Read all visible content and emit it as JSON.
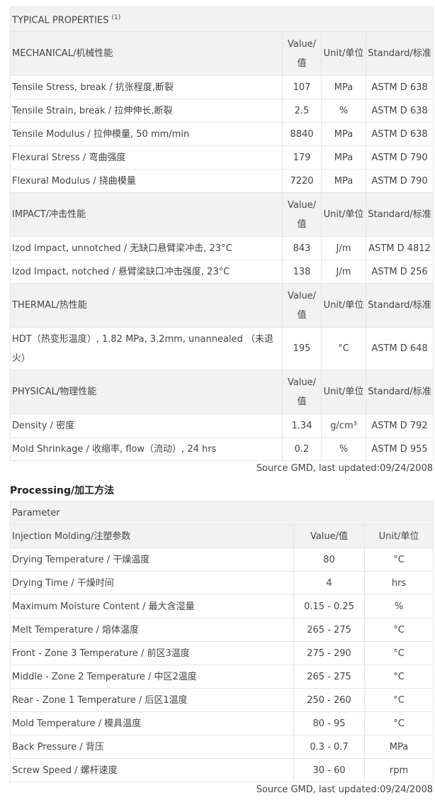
{
  "properties": {
    "title": "TYPICAL PROPERTIES",
    "title_sup": "(1)",
    "sections": [
      {
        "name": "MECHANICAL/机械性能",
        "value_hdr": "Value/值",
        "unit_hdr": "Unit/单位",
        "std_hdr": "Standard/标准",
        "rows": [
          {
            "name": "Tensile Stress, break / 抗张程度,断裂",
            "value": "107",
            "unit": "MPa",
            "std": "ASTM D 638"
          },
          {
            "name": "Tensile Strain, break / 拉伸伸长,断裂",
            "value": "2.5",
            "unit": "%",
            "std": "ASTM D 638"
          },
          {
            "name": "Tensile Modulus / 拉伸模量, 50 mm/min",
            "value": "8840",
            "unit": "MPa",
            "std": "ASTM D 638"
          },
          {
            "name": "Flexural Stress / 弯曲强度",
            "value": "179",
            "unit": "MPa",
            "std": "ASTM D 790"
          },
          {
            "name": "Flexural Modulus / 挠曲模量",
            "value": "7220",
            "unit": "MPa",
            "std": "ASTM D 790"
          }
        ]
      },
      {
        "name": "IMPACT/冲击性能",
        "value_hdr": "Value/值",
        "unit_hdr": "Unit/单位",
        "std_hdr": "Standard/标准",
        "rows": [
          {
            "name": "Izod Impact, unnotched / 无缺口悬臂梁冲击, 23°C",
            "value": "843",
            "unit": "J/m",
            "std": "ASTM D 4812"
          },
          {
            "name": "Izod Impact, notched / 悬臂梁缺口冲击强度, 23°C",
            "value": "138",
            "unit": "J/m",
            "std": "ASTM D 256"
          }
        ]
      },
      {
        "name": "THERMAL/热性能",
        "value_hdr": "Value/值",
        "unit_hdr": "Unit/单位",
        "std_hdr": "Standard/标准",
        "rows": [
          {
            "name": "HDT（热变形温度）, 1.82 MPa, 3.2mm, unannealed （未退火）",
            "value": "195",
            "unit": "°C",
            "std": "ASTM D 648",
            "tall": true
          }
        ]
      },
      {
        "name": "PHYSICAL/物理性能",
        "value_hdr": "Value/值",
        "unit_hdr": "Unit/单位",
        "std_hdr": "Standard/标准",
        "rows": [
          {
            "name": "Density / 密度",
            "value": "1.34",
            "unit": "g/cm³",
            "std": "ASTM D 792"
          },
          {
            "name": "Mold Shrinkage / 收缩率, flow（流动）, 24 hrs",
            "value": "0.2",
            "unit": "%",
            "std": "ASTM D 955"
          }
        ]
      }
    ],
    "source": "Source GMD, last updated:09/24/2008"
  },
  "processing": {
    "heading": "Processing/加工方法",
    "param_hdr": "Parameter",
    "section": "Injection Molding/注塑参数",
    "value_hdr": "Value/值",
    "unit_hdr": "Unit/单位",
    "rows": [
      {
        "name": "Drying Temperature / 干燥温度",
        "value": "80",
        "unit": "°C"
      },
      {
        "name": "Drying Time / 干燥时间",
        "value": "4",
        "unit": "hrs"
      },
      {
        "name": "Maximum Moisture Content / 最大含湿量",
        "value": "0.15 - 0.25",
        "unit": "%"
      },
      {
        "name": "Melt Temperature / 熔体温度",
        "value": "265 - 275",
        "unit": "°C"
      },
      {
        "name": "Front - Zone 3 Temperature / 前区3温度",
        "value": "275 - 290",
        "unit": "°C"
      },
      {
        "name": "Middle - Zone 2 Temperature / 中区2温度",
        "value": "265 - 275",
        "unit": "°C"
      },
      {
        "name": "Rear - Zone 1 Temperature / 后区1温度",
        "value": "250 - 260",
        "unit": "°C"
      },
      {
        "name": "Mold Temperature / 模具温度",
        "value": "80 - 95",
        "unit": "°C"
      },
      {
        "name": "Back Pressure / 背压",
        "value": "0.3 - 0.7",
        "unit": "MPa"
      },
      {
        "name": "Screw Speed / 螺杆速度",
        "value": "30 - 60",
        "unit": "rpm"
      }
    ],
    "source": "Source GMD, last updated:09/24/2008"
  }
}
